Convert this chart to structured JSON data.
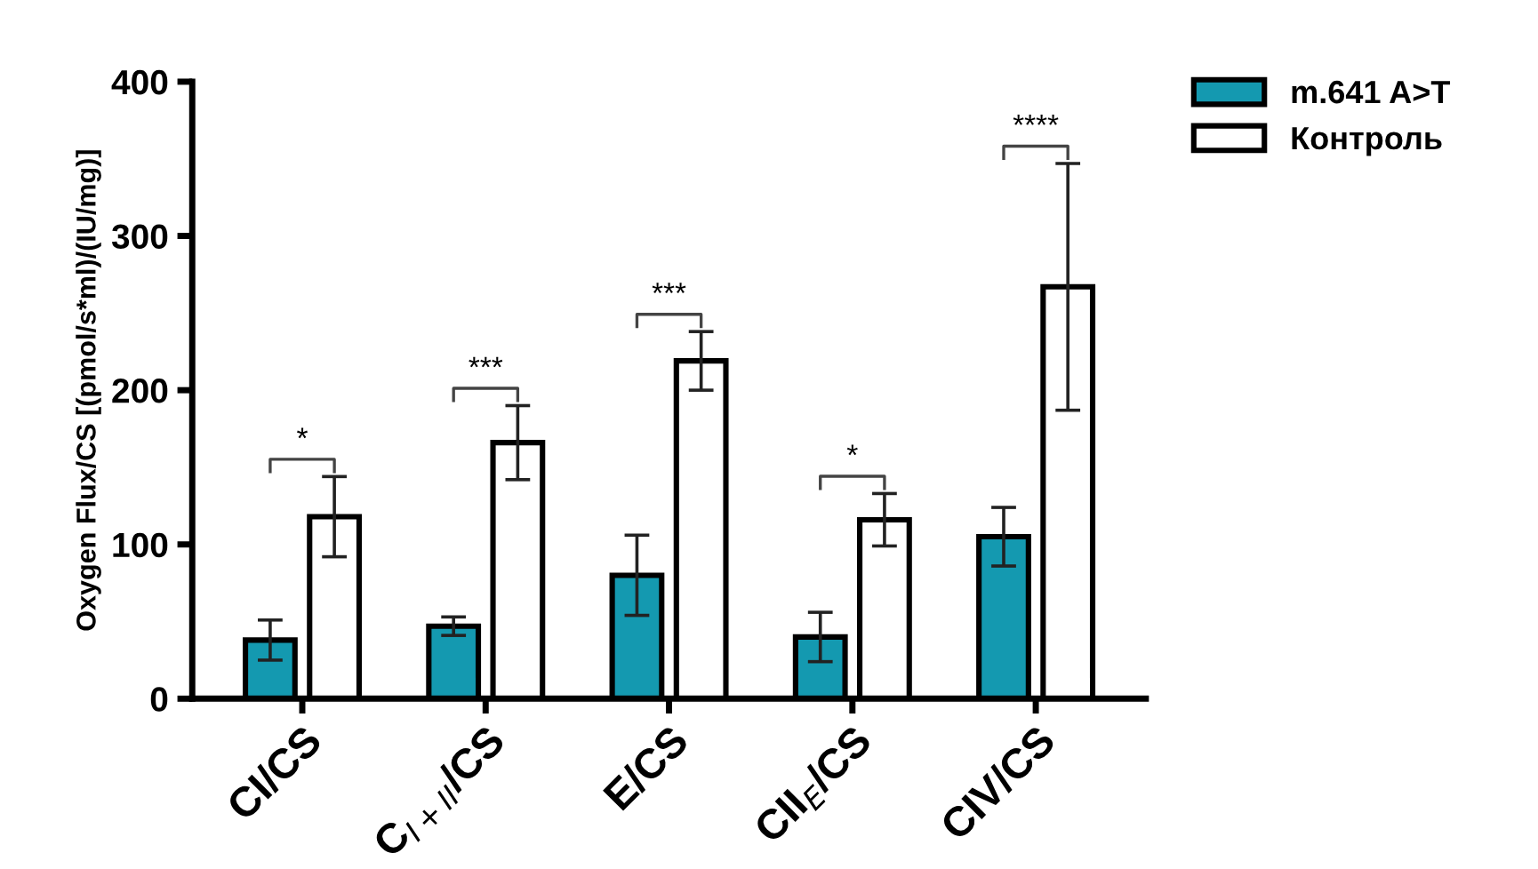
{
  "chart_data": {
    "type": "bar",
    "ylabel": "Oxygen Flux/CS [(pmol/s*ml)/(IU/mg)]",
    "categories": [
      "CI/CS",
      "C$_{I+II}$/CS",
      "E/CS",
      "CII$_{E}$/CS",
      "CIV/CS"
    ],
    "series": [
      {
        "name": "m.641 A>T",
        "color": "#1499b0",
        "values": [
          38,
          47,
          80,
          40,
          105
        ],
        "errors": [
          13,
          6,
          26,
          16,
          19
        ]
      },
      {
        "name": "Контроль",
        "color": "#ffffff",
        "values": [
          118,
          166,
          219,
          116,
          267
        ],
        "errors": [
          26,
          24,
          19,
          17,
          80
        ]
      }
    ],
    "ylim": [
      0,
      400
    ],
    "yticks": [
      0,
      100,
      200,
      300,
      400
    ],
    "grid": false,
    "legend": "top right",
    "annotations": [
      "*",
      "***",
      "***",
      "*",
      "****"
    ]
  }
}
